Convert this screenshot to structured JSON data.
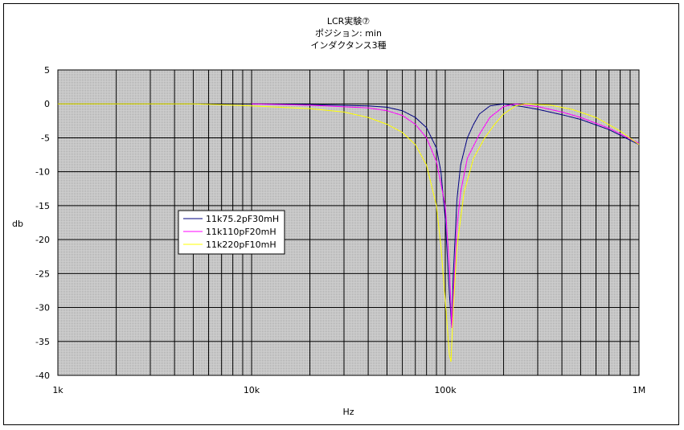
{
  "chart_data": {
    "type": "line",
    "title": [
      "LCR実験⑦",
      "ポジション: min",
      "インダクタンス3種"
    ],
    "xlabel": "Hz",
    "ylabel": "db",
    "xscale": "log",
    "xlim": [
      1000,
      1000000
    ],
    "ylim": [
      -40,
      5
    ],
    "x_ticks": [
      1000,
      10000,
      100000,
      1000000
    ],
    "x_tick_labels": [
      "1k",
      "10k",
      "100k",
      "1M"
    ],
    "y_ticks": [
      5,
      0,
      -5,
      -10,
      -15,
      -20,
      -25,
      -30,
      -35,
      -40
    ],
    "grid": true,
    "legend_position": "center-left",
    "series": [
      {
        "name": "11k75.2pF30mH",
        "color": "#000080",
        "points": [
          [
            10000,
            0
          ],
          [
            20000,
            -0.1
          ],
          [
            40000,
            -0.3
          ],
          [
            50000,
            -0.5
          ],
          [
            60000,
            -1
          ],
          [
            70000,
            -2
          ],
          [
            80000,
            -3.5
          ],
          [
            90000,
            -6.5
          ],
          [
            95000,
            -10
          ],
          [
            100000,
            -17
          ],
          [
            105000,
            -28
          ],
          [
            108000,
            -33
          ],
          [
            110000,
            -25
          ],
          [
            115000,
            -14
          ],
          [
            120000,
            -9
          ],
          [
            130000,
            -5
          ],
          [
            140000,
            -3
          ],
          [
            150000,
            -1.5
          ],
          [
            170000,
            -0.3
          ],
          [
            200000,
            0
          ],
          [
            250000,
            -0.4
          ],
          [
            300000,
            -0.8
          ],
          [
            400000,
            -1.6
          ],
          [
            500000,
            -2.3
          ],
          [
            700000,
            -3.8
          ],
          [
            1000000,
            -6
          ]
        ]
      },
      {
        "name": "11k110pF20mH",
        "color": "#ff00ff",
        "points": [
          [
            10000,
            0
          ],
          [
            20000,
            -0.2
          ],
          [
            40000,
            -0.6
          ],
          [
            50000,
            -1
          ],
          [
            60000,
            -1.7
          ],
          [
            70000,
            -3
          ],
          [
            80000,
            -5
          ],
          [
            90000,
            -8.5
          ],
          [
            100000,
            -15
          ],
          [
            105000,
            -24
          ],
          [
            108000,
            -33
          ],
          [
            110000,
            -28
          ],
          [
            115000,
            -18
          ],
          [
            120000,
            -13
          ],
          [
            130000,
            -8
          ],
          [
            150000,
            -4.5
          ],
          [
            170000,
            -2
          ],
          [
            200000,
            -0.4
          ],
          [
            230000,
            0
          ],
          [
            300000,
            -0.4
          ],
          [
            400000,
            -1.2
          ],
          [
            500000,
            -2
          ],
          [
            700000,
            -3.6
          ],
          [
            1000000,
            -5.8
          ]
        ]
      },
      {
        "name": "11k220pF10mH",
        "color": "#ffff00",
        "points": [
          [
            1000,
            0
          ],
          [
            2000,
            0
          ],
          [
            5000,
            0
          ],
          [
            10000,
            -0.3
          ],
          [
            20000,
            -0.7
          ],
          [
            30000,
            -1.2
          ],
          [
            40000,
            -2
          ],
          [
            50000,
            -3
          ],
          [
            60000,
            -4.2
          ],
          [
            70000,
            -6
          ],
          [
            80000,
            -9
          ],
          [
            90000,
            -15
          ],
          [
            95000,
            -21
          ],
          [
            100000,
            -29
          ],
          [
            105000,
            -37
          ],
          [
            107000,
            -38
          ],
          [
            110000,
            -30
          ],
          [
            115000,
            -21
          ],
          [
            125000,
            -13
          ],
          [
            140000,
            -8
          ],
          [
            160000,
            -5
          ],
          [
            180000,
            -3
          ],
          [
            200000,
            -1.5
          ],
          [
            230000,
            -0.3
          ],
          [
            260000,
            0
          ],
          [
            350000,
            -0.2
          ],
          [
            450000,
            -0.8
          ],
          [
            600000,
            -2
          ],
          [
            800000,
            -4
          ],
          [
            1000000,
            -6
          ]
        ]
      }
    ]
  }
}
